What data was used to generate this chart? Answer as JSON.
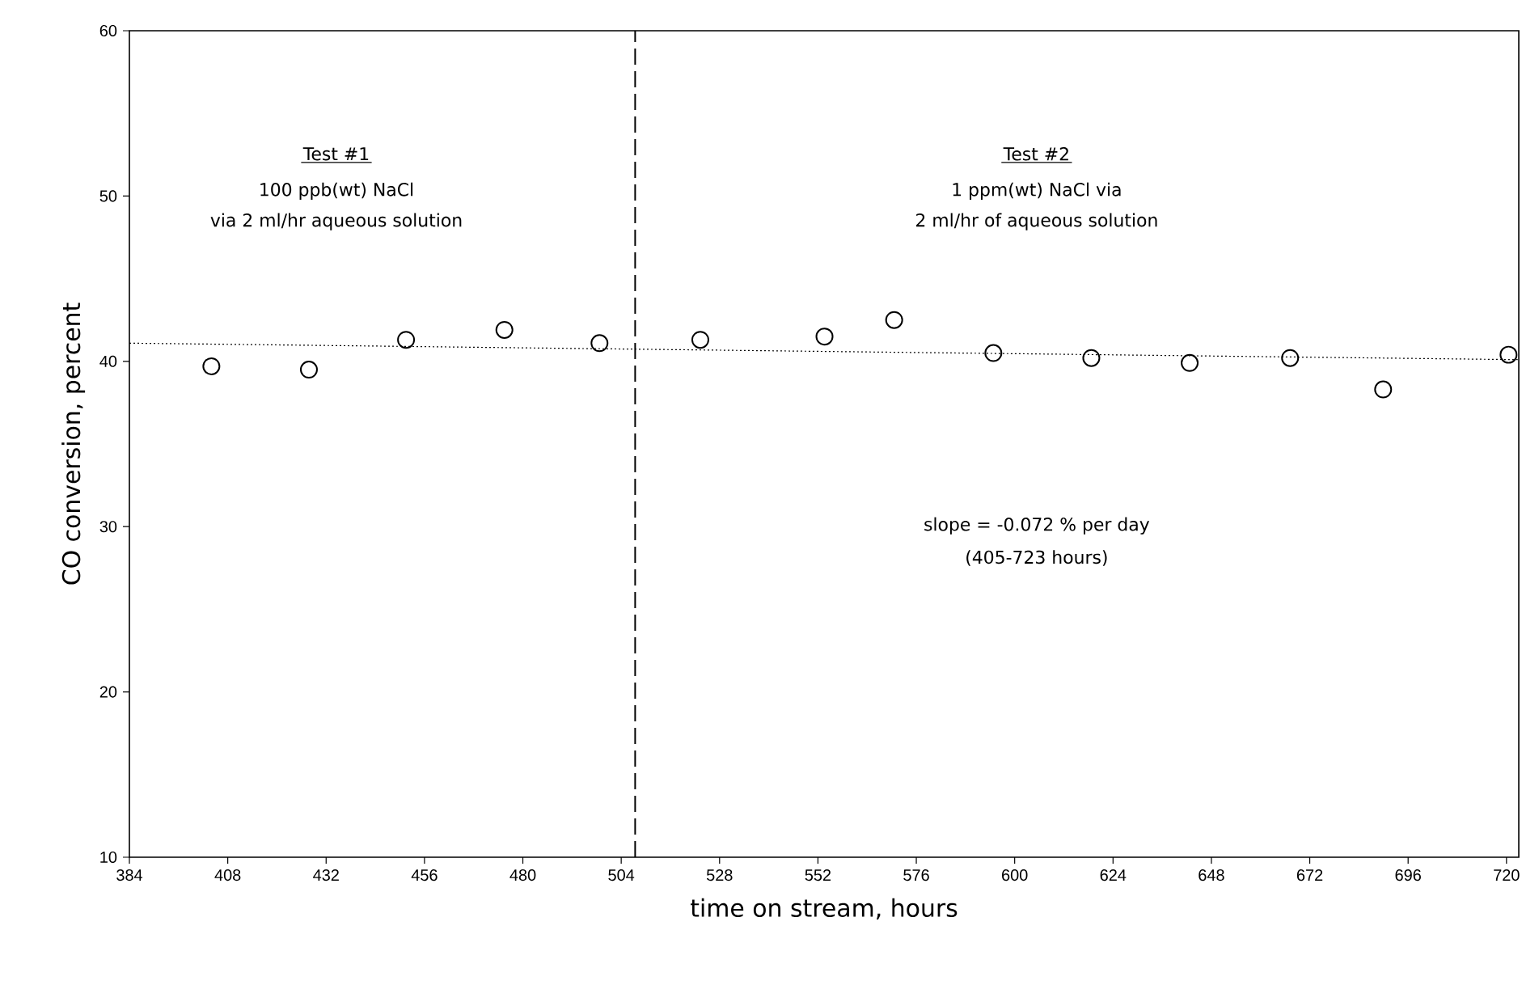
{
  "chart_data": {
    "type": "scatter",
    "xlabel": "time on stream, hours",
    "ylabel": "CO conversion, percent",
    "xlim": [
      384,
      723
    ],
    "xticks": [
      384,
      408,
      432,
      456,
      480,
      504,
      528,
      552,
      576,
      600,
      624,
      648,
      672,
      696,
      720
    ],
    "ylim": [
      10,
      60
    ],
    "yticks": [
      10,
      20,
      30,
      40,
      50,
      60
    ],
    "grid": false,
    "series": [
      {
        "marker": "circle",
        "color": "#000000",
        "x": [
          404,
          427.8,
          451.5,
          475.5,
          498.7,
          523.3,
          553.6,
          570.6,
          594.8,
          618.7,
          642.7,
          667.2,
          689.9,
          720.5
        ],
        "values": [
          39.7,
          39.5,
          41.3,
          41.9,
          41.1,
          41.3,
          41.5,
          42.5,
          40.5,
          40.2,
          39.9,
          40.2,
          38.3,
          40.4
        ]
      },
      {
        "type": "line",
        "marker": "none",
        "line_style": "dotted",
        "color": "#000000",
        "x": [
          384,
          723
        ],
        "values": [
          41.1,
          40.1
        ]
      }
    ],
    "ref_lines": [
      {
        "axis": "x",
        "value": 507.4,
        "line_style": "dashed",
        "color": "#000000"
      }
    ],
    "annotations": [
      "Test #1",
      "100 ppb(wt) NaCl",
      "via 2 ml/hr aqueous solution",
      "Test #2",
      "1 ppm(wt) NaCl via",
      "2 ml/hr of aqueous solution",
      "slope = -0.072 % per day",
      "(405-723 hours)"
    ]
  }
}
